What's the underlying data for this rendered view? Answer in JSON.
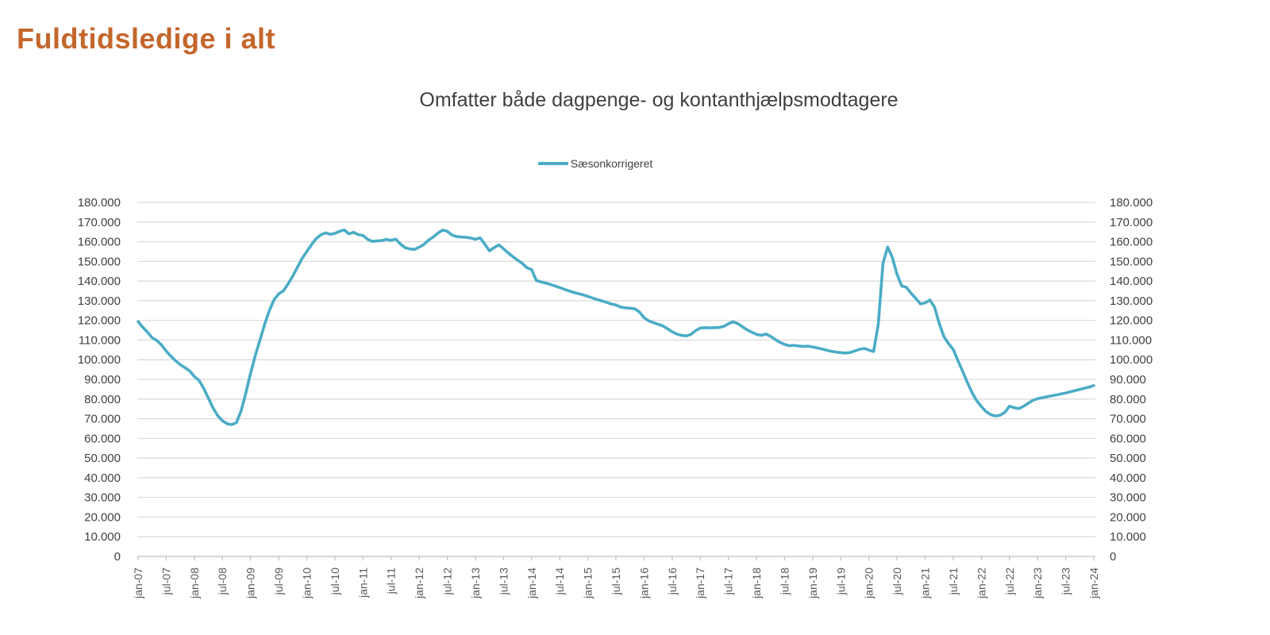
{
  "page": {
    "title": "Fuldtidsledige i alt"
  },
  "chart": {
    "subtitle": "Omfatter både dagpenge- og kontanthjælpsmodtagere",
    "legend": {
      "label": "Sæsonkorrigeret"
    }
  },
  "colors": {
    "title": "#c4662c",
    "subtitle": "#3f3f3f",
    "legend_text": "#404040",
    "line": "#4bacc6",
    "gridline": "#d9d9d9",
    "axis_line": "#bfbfbf",
    "y_tick_text": "#404040",
    "x_tick_text": "#595959"
  },
  "chart_data": {
    "type": "line",
    "title": "Omfatter både dagpenge- og kontanthjælpsmodtagere",
    "legend_position": "top-center",
    "grid": true,
    "x_start": "jan-07",
    "x_interval_months": 1,
    "x_tick_every_months": 6,
    "x_tick_labels": [
      "jan-07",
      "jul-07",
      "jan-08",
      "jul-08",
      "jan-09",
      "jul-09",
      "jan-10",
      "jul-10",
      "jan-11",
      "jul-11",
      "jan-12",
      "jul-12",
      "jan-13",
      "jul-13",
      "jan-14",
      "jul-14",
      "jan-15",
      "jul-15",
      "jan-16",
      "jul-16",
      "jan-17",
      "jul-17",
      "jan-18",
      "jul-18",
      "jan-19",
      "jul-19",
      "jan-20",
      "jul-20",
      "jan-21",
      "jul-21",
      "jan-22",
      "jul-22",
      "jan-23",
      "jul-23",
      "jan-24"
    ],
    "ylabel": "",
    "xlabel": "",
    "ylim": [
      0,
      180000
    ],
    "y_tick_step": 10000,
    "y_axis_sides": "both",
    "series": [
      {
        "name": "Sæsonkorrigeret",
        "values": [
          119400,
          116500,
          114000,
          111200,
          109800,
          107500,
          104400,
          101800,
          99500,
          97500,
          96000,
          94300,
          91500,
          89500,
          85500,
          80500,
          75500,
          71500,
          69000,
          67500,
          67000,
          68000,
          74000,
          83000,
          93000,
          102000,
          110000,
          118000,
          125000,
          130500,
          133500,
          135000,
          138500,
          142500,
          147000,
          151500,
          155000,
          158500,
          161500,
          163500,
          164500,
          163800,
          164200,
          165300,
          166000,
          164000,
          164800,
          163600,
          163200,
          161200,
          160200,
          160400,
          160600,
          161200,
          160700,
          161300,
          158800,
          157000,
          156300,
          156100,
          157200,
          158600,
          160800,
          162400,
          164400,
          165900,
          165300,
          163400,
          162600,
          162400,
          162200,
          161900,
          161200,
          162000,
          158800,
          155400,
          157000,
          158400,
          156400,
          154300,
          152400,
          150600,
          149000,
          146800,
          145800,
          140300,
          139600,
          139000,
          138300,
          137500,
          136700,
          135800,
          135000,
          134200,
          133600,
          133000,
          132200,
          131400,
          130600,
          129900,
          129200,
          128400,
          127800,
          126800,
          126400,
          126200,
          125900,
          124300,
          121400,
          119800,
          118900,
          118100,
          117200,
          115800,
          114200,
          113100,
          112400,
          112100,
          112900,
          114800,
          116100,
          116300,
          116200,
          116300,
          116400,
          116900,
          118300,
          119300,
          118400,
          116800,
          115200,
          114000,
          112900,
          112400,
          113100,
          111900,
          110300,
          108900,
          107800,
          107100,
          107300,
          107000,
          106800,
          106900,
          106500,
          106000,
          105400,
          104800,
          104300,
          103900,
          103600,
          103400,
          103700,
          104500,
          105300,
          105800,
          104900,
          104200,
          118000,
          149000,
          157300,
          152000,
          143500,
          137500,
          136800,
          133800,
          131200,
          128400,
          128900,
          130400,
          126800,
          118600,
          111800,
          108200,
          105300,
          99600,
          94200,
          88600,
          83400,
          79200,
          76200,
          73600,
          72100,
          71400,
          71800,
          73200,
          76400,
          75600,
          75200,
          76300,
          77900,
          79400,
          80200,
          80700,
          81200,
          81700,
          82100,
          82600,
          83100,
          83700,
          84300,
          84900,
          85500,
          86100,
          86900
        ]
      }
    ]
  }
}
